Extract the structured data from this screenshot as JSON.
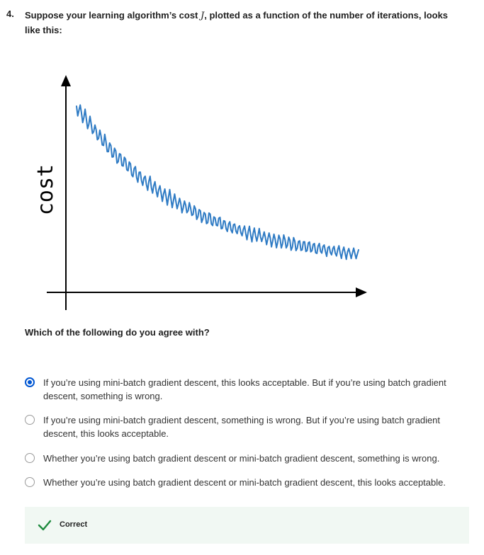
{
  "question": {
    "number": "4.",
    "text_before": "Suppose your learning algorithm’s cost ",
    "math_symbol": "J",
    "text_after": ", plotted as a function of the number of iterations, looks like this:"
  },
  "figure": {
    "ylabel": "cost",
    "axis_color": "#000000",
    "curve_color": "#2f7bc4"
  },
  "prompt": "Which of the following do you agree with?",
  "options": [
    {
      "label": "If you’re using mini-batch gradient descent, this looks acceptable. But if you’re using batch gradient descent, something is wrong.",
      "selected": true
    },
    {
      "label": "If you’re using mini-batch gradient descent, something is wrong. But if you’re using batch gradient descent, this looks acceptable.",
      "selected": false
    },
    {
      "label": "Whether you’re using batch gradient descent or mini-batch gradient descent, something is wrong.",
      "selected": false
    },
    {
      "label": "Whether you’re using batch gradient descent or mini-batch gradient descent, this looks acceptable.",
      "selected": false
    }
  ],
  "feedback": {
    "label": "Correct",
    "icon": "checkmark-icon",
    "background": "#f1f8f3",
    "accent": "#1e8a3e"
  },
  "colors": {
    "radio_selected": "#0056d2"
  }
}
